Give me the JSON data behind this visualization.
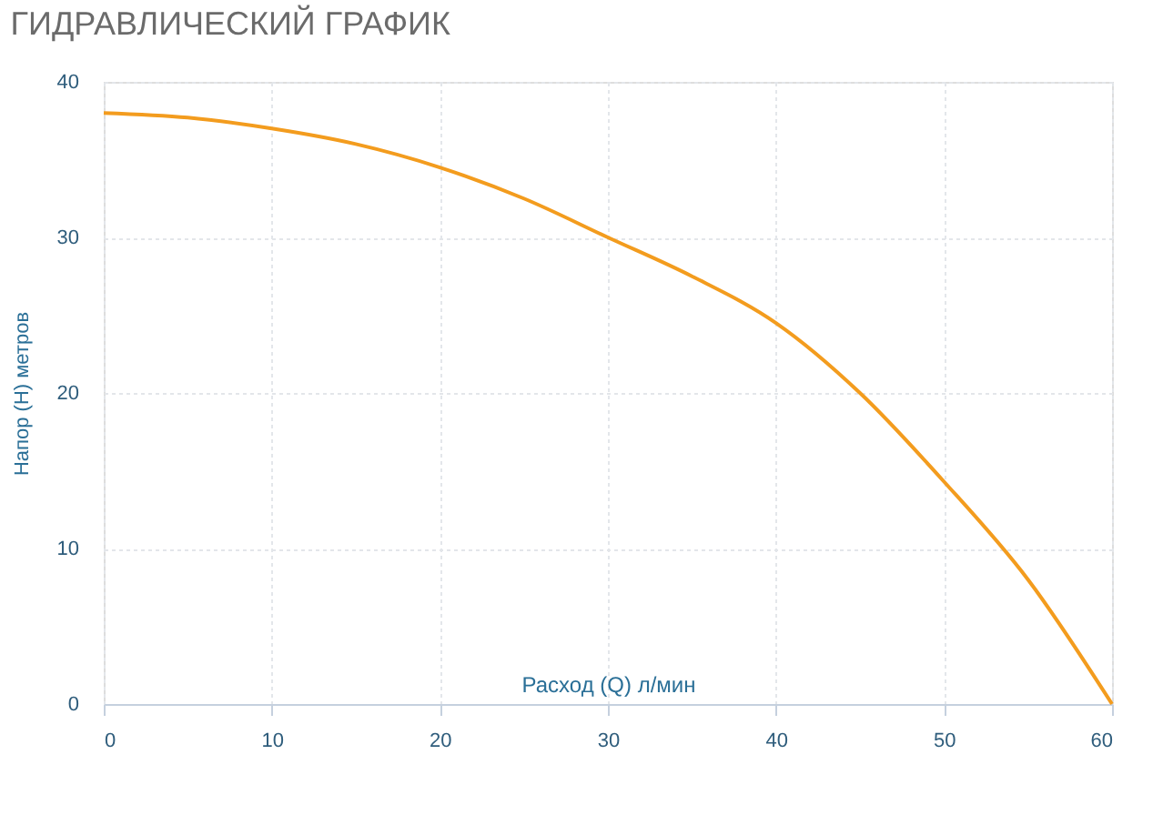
{
  "chart_data": {
    "type": "line",
    "title": "ГИДРАВЛИЧЕСКИЙ ГРАФИК",
    "xlabel": "Расход (Q) л/мин",
    "ylabel": "Напор (H) метров",
    "x": [
      0,
      5,
      10,
      15,
      20,
      25,
      30,
      35,
      40,
      45,
      50,
      55,
      60
    ],
    "series": [
      {
        "color": "#f39c1e",
        "values": [
          38,
          37.7,
          37,
          36,
          34.5,
          32.5,
          30,
          27.5,
          24.5,
          20,
          14.3,
          8,
          0
        ]
      }
    ],
    "xlim": [
      0,
      60
    ],
    "xticks": [
      0,
      10,
      20,
      30,
      40,
      50,
      60
    ],
    "ylim": [
      0,
      40
    ],
    "yticks": [
      0,
      10,
      20,
      30,
      40
    ],
    "grid": true,
    "marker": "none",
    "line_style": "solid"
  }
}
